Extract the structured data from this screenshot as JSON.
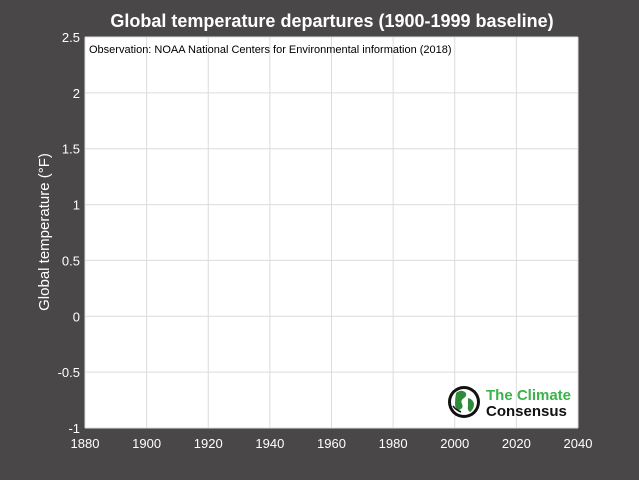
{
  "chart_data": {
    "type": "line",
    "title": "Global temperature departures (1900-1999 baseline)",
    "ylabel": "Global temperature (°F)",
    "xlabel": "",
    "xlim": [
      1880,
      2040
    ],
    "ylim": [
      -1,
      2.5
    ],
    "x_ticks": [
      "1880",
      "1900",
      "1920",
      "1940",
      "1960",
      "1980",
      "2000",
      "2020",
      "2040"
    ],
    "y_ticks": [
      "-1",
      "-0.5",
      "0",
      "0.5",
      "1",
      "1.5",
      "2",
      "2.5"
    ],
    "grid": true,
    "series": [],
    "annotation": "Observation: NOAA National Centers for Environmental information (2018)"
  },
  "logo": {
    "line1": "The Climate",
    "line2": "Consensus"
  },
  "colors": {
    "background": "#4a4748",
    "plot_area": "#ffffff",
    "grid": "#dcdcdc",
    "text": "#ffffff",
    "logo_green": "#3bb34a",
    "logo_dark": "#111111"
  }
}
